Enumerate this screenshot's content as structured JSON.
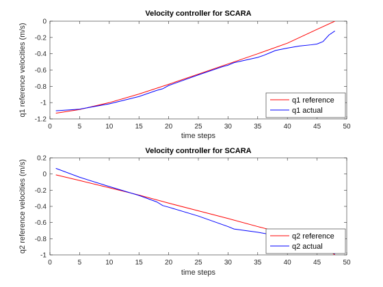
{
  "chart_data": [
    {
      "type": "line",
      "title": "Velocity controller for SCARA",
      "xlabel": "time steps",
      "ylabel": "q1 reference velocities (m/s)",
      "xlim": [
        0,
        50
      ],
      "ylim": [
        -1.2,
        0
      ],
      "xticks": [
        "0",
        "5",
        "10",
        "15",
        "20",
        "25",
        "30",
        "35",
        "40",
        "45",
        "50"
      ],
      "yticks": [
        "-1.2",
        "-1",
        "-0.8",
        "-0.6",
        "-0.4",
        "-0.2",
        "0"
      ],
      "grid": false,
      "legend_position": "bottom-right",
      "series": [
        {
          "name": "q1 reference",
          "color": "#ff0000",
          "x": [
            1,
            5,
            10,
            15,
            20,
            25,
            30,
            35,
            40,
            45,
            48
          ],
          "y": [
            -1.13,
            -1.085,
            -1.0,
            -0.895,
            -0.775,
            -0.65,
            -0.525,
            -0.4,
            -0.27,
            -0.1,
            0.0
          ]
        },
        {
          "name": "q1 actual",
          "color": "#0000ff",
          "x": [
            1,
            5,
            10,
            15,
            18,
            19,
            20,
            25,
            29,
            30,
            31,
            35,
            36,
            37,
            38,
            40,
            42,
            44,
            45,
            46,
            47,
            48
          ],
          "y": [
            -1.1,
            -1.08,
            -1.015,
            -0.925,
            -0.85,
            -0.83,
            -0.79,
            -0.66,
            -0.56,
            -0.54,
            -0.51,
            -0.445,
            -0.42,
            -0.39,
            -0.36,
            -0.33,
            -0.305,
            -0.29,
            -0.28,
            -0.25,
            -0.17,
            -0.12
          ]
        }
      ]
    },
    {
      "type": "line",
      "title": "Velocity controller for SCARA",
      "xlabel": "time steps",
      "ylabel": "q2 reference velocities (m/s)",
      "xlim": [
        0,
        50
      ],
      "ylim": [
        -1,
        0.2
      ],
      "xticks": [
        "0",
        "5",
        "10",
        "15",
        "20",
        "25",
        "30",
        "35",
        "40",
        "45",
        "50"
      ],
      "yticks": [
        "-1",
        "-0.8",
        "-0.6",
        "-0.4",
        "-0.2",
        "0",
        "0.2"
      ],
      "grid": false,
      "legend_position": "bottom-right",
      "series": [
        {
          "name": "q2 reference",
          "color": "#ff0000",
          "x": [
            1,
            5,
            10,
            15,
            20,
            25,
            30,
            35,
            40,
            45,
            48
          ],
          "y": [
            -0.01,
            -0.08,
            -0.17,
            -0.26,
            -0.36,
            -0.455,
            -0.55,
            -0.65,
            -0.745,
            -0.84,
            -1.0
          ]
        },
        {
          "name": "q2 actual",
          "color": "#0000ff",
          "x": [
            1,
            5,
            10,
            15,
            18,
            19,
            20,
            25,
            30,
            31,
            35,
            40,
            45,
            47,
            48
          ],
          "y": [
            0.07,
            -0.04,
            -0.155,
            -0.265,
            -0.345,
            -0.39,
            -0.41,
            -0.52,
            -0.65,
            -0.68,
            -0.72,
            -0.785,
            -0.86,
            -0.94,
            -0.99
          ]
        }
      ]
    }
  ]
}
